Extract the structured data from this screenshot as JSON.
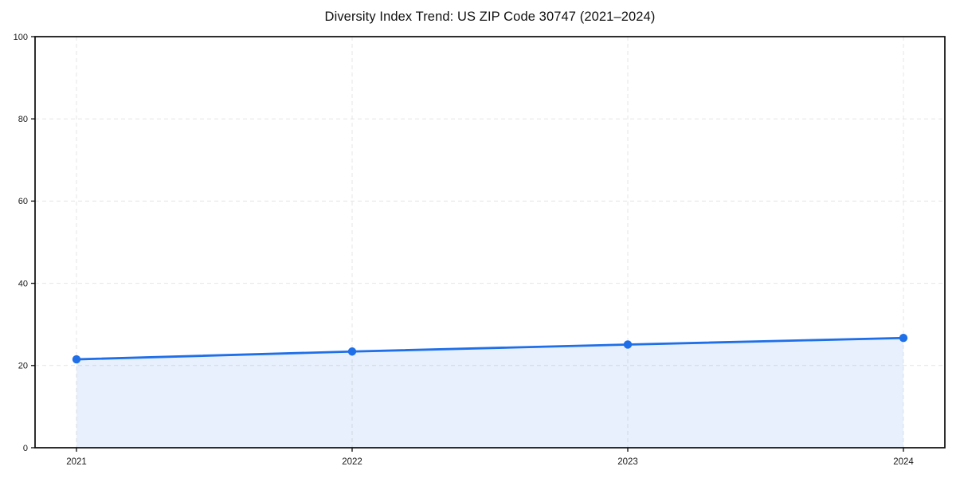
{
  "chart_data": {
    "type": "area",
    "title": "Diversity Index Trend: US ZIP Code 30747 (2021–2024)",
    "series_name": "Diversity Index",
    "categories": [
      "2021",
      "2022",
      "2023",
      "2024"
    ],
    "values": [
      21.5,
      23.4,
      25.1,
      26.7
    ],
    "xlabel": "",
    "ylabel": "",
    "ylim": [
      0,
      100
    ],
    "yticks": [
      0,
      20,
      40,
      60,
      80,
      100
    ],
    "grid": true,
    "grid_style": "dashed",
    "legend_position": "none",
    "colors": {
      "line": "#1f6fe8",
      "marker": "#1f6fe8",
      "fill": "rgba(31, 111, 232, 0.10)",
      "grid": "#e4e4e4",
      "spine": "#0a0a0a",
      "tick_label": "#1a1a1a",
      "title": "#111111",
      "background": "#ffffff"
    }
  }
}
